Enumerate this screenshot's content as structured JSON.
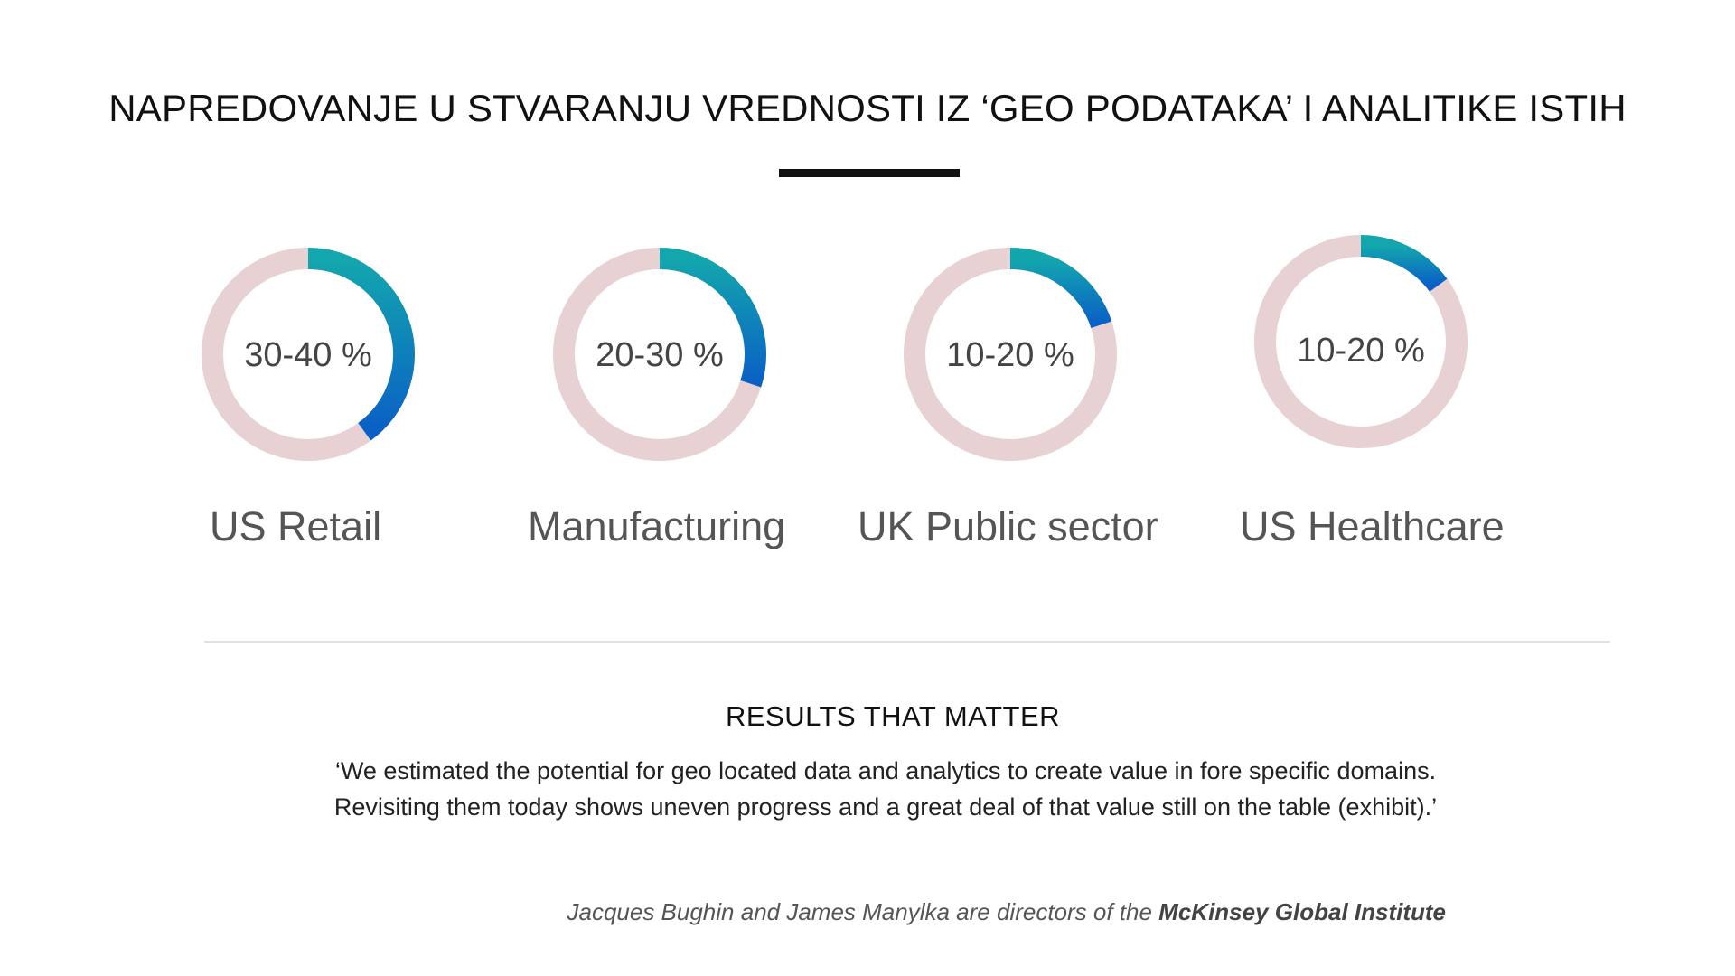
{
  "title": "NAPREDOVANJE U STVARANJU VREDNOSTI IZ ‘GEO PODATAKA’ I ANALITIKE  ISTIH",
  "colors": {
    "track": "#e7d1d2",
    "gradient_start": "#13a7ad",
    "gradient_end": "#0a5fc6"
  },
  "chart_data": {
    "type": "pie",
    "style": "donut-progress",
    "series": [
      {
        "name": "US Retail",
        "label": "30-40 %",
        "progress_fraction": 0.4
      },
      {
        "name": "Manufacturing",
        "label": "20-30 %",
        "progress_fraction": 0.3
      },
      {
        "name": "UK Public sector",
        "label": "10-20 %",
        "progress_fraction": 0.2
      },
      {
        "name": "US Healthcare",
        "label": "10-20 %",
        "progress_fraction": 0.15
      }
    ]
  },
  "section": {
    "subtitle": "RESULTS THAT MATTER",
    "quote": "‘We estimated the potential for geo located data and analytics to create value in fore specific domains. Revisiting them today shows uneven progress and a great deal of that value still on the table (exhibit).’",
    "attribution_prefix": "Jacques Bughin and James Manylka  are directors of the ",
    "attribution_org": "McKinsey Global Institute"
  }
}
